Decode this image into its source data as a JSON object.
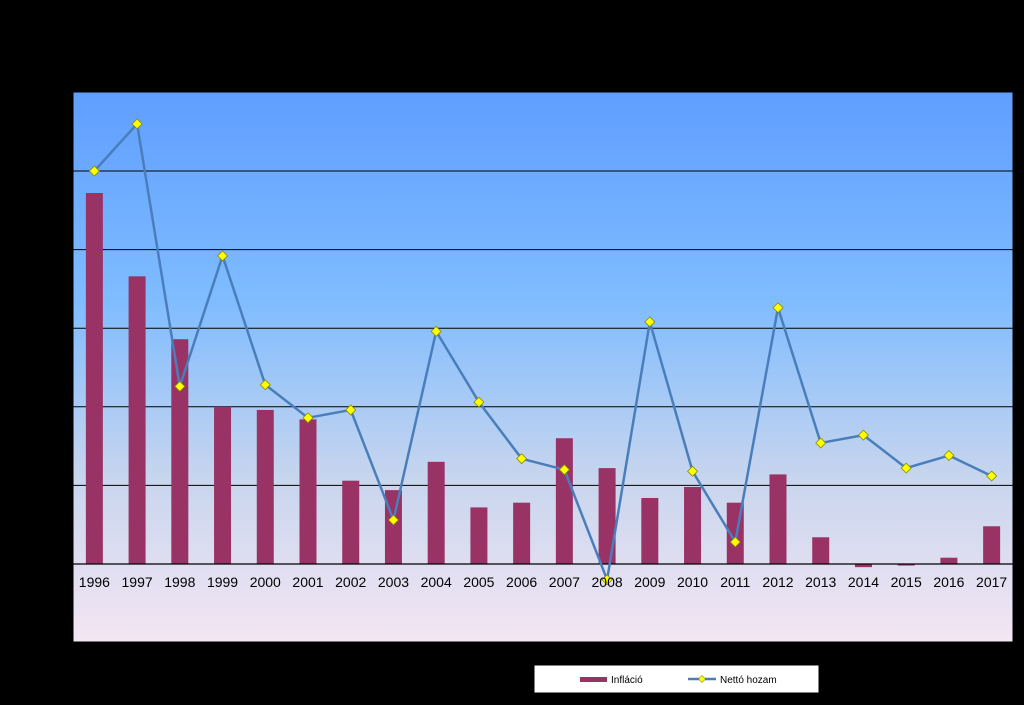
{
  "chart_data": {
    "type": "bar",
    "title": "",
    "xlabel": "",
    "ylabel": "",
    "ylim": [
      -0.5,
      30
    ],
    "gridlines": [
      5,
      10,
      15,
      20,
      25
    ],
    "grid": true,
    "legend_position": "bottom",
    "categories": [
      "1996",
      "1997",
      "1998",
      "1999",
      "2000",
      "2001",
      "2002",
      "2003",
      "2004",
      "2005",
      "2006",
      "2007",
      "2008",
      "2009",
      "2010",
      "2011",
      "2012",
      "2013",
      "2014",
      "2015",
      "2016",
      "2017"
    ],
    "series": [
      {
        "name": "Infláció",
        "type": "bar",
        "color": "#993366",
        "values": [
          23.6,
          18.3,
          14.3,
          10.0,
          9.8,
          9.2,
          5.3,
          4.7,
          6.5,
          3.6,
          3.9,
          8.0,
          6.1,
          4.2,
          4.9,
          3.9,
          5.7,
          1.7,
          -0.2,
          -0.1,
          0.4,
          2.4
        ]
      },
      {
        "name": "Nettó hozam",
        "type": "line",
        "color": "#4A7EBB",
        "marker_color": "#FFFF00",
        "values": [
          25.0,
          28.0,
          11.3,
          19.6,
          11.4,
          9.3,
          9.8,
          2.8,
          14.8,
          10.3,
          6.7,
          6.0,
          -1.0,
          15.4,
          5.9,
          1.4,
          16.3,
          7.7,
          8.2,
          6.1,
          6.9,
          5.6
        ]
      }
    ]
  }
}
